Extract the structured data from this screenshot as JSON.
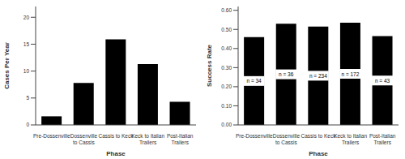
{
  "chart_data": [
    {
      "type": "bar",
      "x_label": "Phase",
      "y_label": "Cases Per Year",
      "categories": [
        "Pre-Dossenville",
        "Dossenville to Cassis",
        "Cassis to Keck",
        "Keck to Italian Trailers",
        "Post-Italian Trailers"
      ],
      "values": [
        1.6,
        7.8,
        15.9,
        11.3,
        4.3
      ],
      "color": "#000000",
      "ylim": [
        0,
        22
      ],
      "yticks": [
        0,
        5,
        10,
        15,
        20
      ],
      "grid": false
    },
    {
      "type": "bar",
      "x_label": "Phase",
      "y_label": "Success Rate",
      "categories": [
        "Pre-Dossenville",
        "Dossenville to Cassis",
        "Cassis to Keck",
        "Keck to Italian Trailers",
        "Post-Italian Trailers"
      ],
      "values": [
        0.46,
        0.53,
        0.515,
        0.535,
        0.465
      ],
      "bar_labels": [
        "n = 34",
        "n = 36",
        "n = 234",
        "n = 172",
        "n = 43"
      ],
      "color": "#000000",
      "ylim": [
        0,
        0.62
      ],
      "yticks": [
        {
          "value": 0,
          "label": "0.00"
        },
        {
          "value": 0.1,
          "label": "0.10"
        },
        {
          "value": 0.2,
          "label": "0.20"
        },
        {
          "value": 0.3,
          "label": "0.30"
        },
        {
          "value": 0.4,
          "label": "0.40"
        },
        {
          "value": 0.5,
          "label": "0.50"
        },
        {
          "value": 0.6,
          "label": "0.60"
        }
      ],
      "grid": false
    }
  ]
}
